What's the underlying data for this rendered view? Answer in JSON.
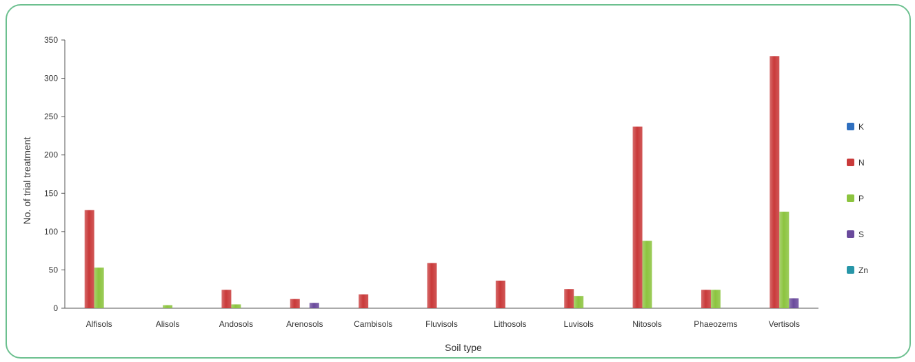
{
  "chart_data": {
    "type": "bar",
    "title": "",
    "xlabel": "Soil type",
    "ylabel": "No. of trial treatment",
    "ylim": [
      0,
      350
    ],
    "yticks": [
      0,
      50,
      100,
      150,
      200,
      250,
      300,
      350
    ],
    "grid": false,
    "legend_position": "right",
    "categories": [
      "Alfisols",
      "Alisols",
      "Andosols",
      "Arenosols",
      "Cambisols",
      "Fluvisols",
      "Lithosols",
      "Luvisols",
      "Nitosols",
      "Phaeozems",
      "Vertisols"
    ],
    "series": [
      {
        "name": "K",
        "color": "#2f6fbf",
        "values": [
          0,
          0,
          0,
          0,
          0,
          0,
          0,
          0,
          0,
          0,
          0
        ]
      },
      {
        "name": "N",
        "color": "#c93a3a",
        "values": [
          128,
          0,
          24,
          12,
          18,
          59,
          36,
          25,
          237,
          24,
          329
        ]
      },
      {
        "name": "P",
        "color": "#8cc43f",
        "values": [
          53,
          4,
          5,
          0,
          0,
          0,
          0,
          16,
          88,
          24,
          126
        ]
      },
      {
        "name": "S",
        "color": "#6a4a9c",
        "values": [
          0,
          0,
          0,
          7,
          0,
          0,
          0,
          0,
          0,
          0,
          13
        ]
      },
      {
        "name": "Zn",
        "color": "#2796a8",
        "values": [
          0,
          0,
          0,
          0,
          0,
          0,
          0,
          0,
          0,
          0,
          0
        ]
      }
    ]
  }
}
